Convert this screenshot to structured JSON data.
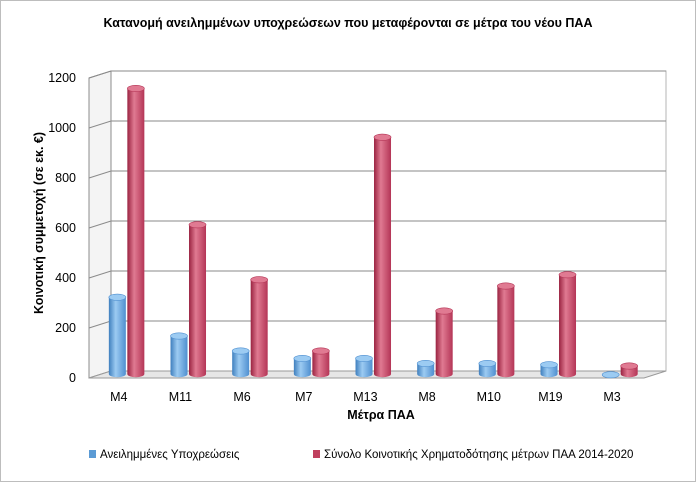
{
  "chart_data": {
    "type": "bar",
    "title": "Κατανομή ανειλημμένων υποχρεώσεων που μεταφέρονται σε μέτρα του νέου ΠΑΑ",
    "xlabel": "Μέτρα ΠΑΑ",
    "ylabel": "Κοινοτική συμμετοχή (σε εκ. €)",
    "categories": [
      "M4",
      "M11",
      "M6",
      "M7",
      "M13",
      "M8",
      "M10",
      "M19",
      "M3"
    ],
    "series": [
      {
        "name": "Ανειλημμένες Υποχρεώσεις",
        "color": "#5b9bd5",
        "values": [
          315,
          160,
          100,
          70,
          70,
          50,
          50,
          45,
          5
        ]
      },
      {
        "name": "Σύνολο Κοινοτικής Χρηματοδότησης μέτρων ΠΑΑ 2014-2020",
        "color": "#c0405e",
        "values": [
          1150,
          605,
          385,
          100,
          955,
          260,
          360,
          405,
          40
        ]
      }
    ],
    "ylim": [
      0,
      1200
    ],
    "yticks": [
      0,
      200,
      400,
      600,
      800,
      1000,
      1200
    ],
    "grid": true,
    "legend_position": "bottom"
  }
}
